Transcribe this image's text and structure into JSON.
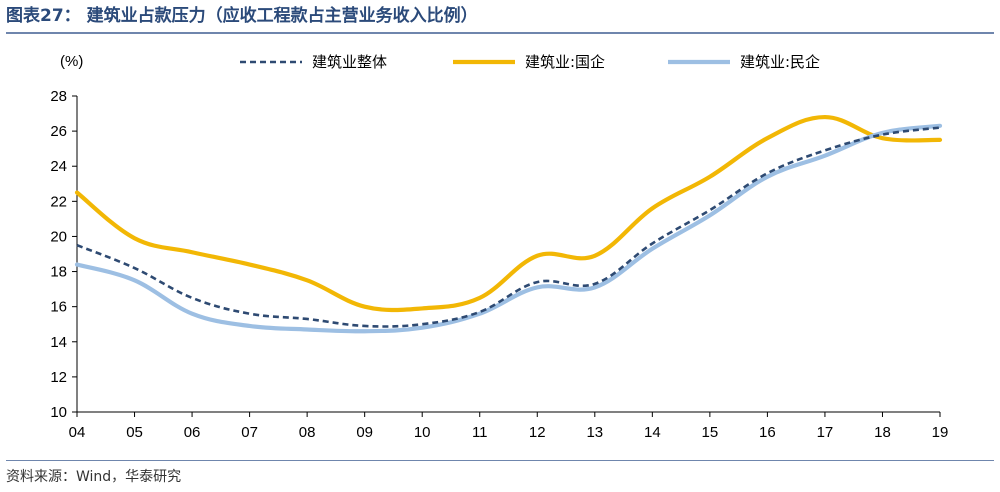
{
  "header": {
    "title": "图表27：  建筑业占款压力（应收工程款占主营业务收入比例）",
    "source": "资料来源：Wind，华泰研究"
  },
  "chart_data": {
    "type": "line",
    "title": "图表27：  建筑业占款压力（应收工程款占主营业务收入比例）",
    "ylabel": "(%)",
    "xlabel": "",
    "ylim": [
      10,
      28
    ],
    "yticks": [
      10,
      12,
      14,
      16,
      18,
      20,
      22,
      24,
      26,
      28
    ],
    "x": [
      "04",
      "05",
      "06",
      "07",
      "08",
      "09",
      "10",
      "11",
      "12",
      "13",
      "14",
      "15",
      "16",
      "17",
      "18",
      "19"
    ],
    "legend_position": "top",
    "grid": false,
    "series": [
      {
        "name": "建筑业整体",
        "color": "#2e4a72",
        "dash": "dashed",
        "values": [
          19.5,
          18.2,
          16.5,
          15.6,
          15.3,
          14.9,
          15.0,
          15.7,
          17.4,
          17.3,
          19.6,
          21.5,
          23.6,
          24.9,
          25.8,
          26.2
        ]
      },
      {
        "name": "建筑业:国企",
        "color": "#f2b705",
        "dash": "solid",
        "values": [
          22.5,
          19.9,
          19.1,
          18.4,
          17.5,
          16.0,
          15.9,
          16.5,
          18.9,
          18.9,
          21.6,
          23.4,
          25.6,
          26.8,
          25.6,
          25.5
        ]
      },
      {
        "name": "建筑业:民企",
        "color": "#9dbfe3",
        "dash": "solid",
        "values": [
          18.4,
          17.5,
          15.6,
          14.9,
          14.7,
          14.6,
          14.8,
          15.6,
          17.1,
          17.1,
          19.3,
          21.2,
          23.4,
          24.6,
          25.9,
          26.3
        ]
      }
    ]
  }
}
